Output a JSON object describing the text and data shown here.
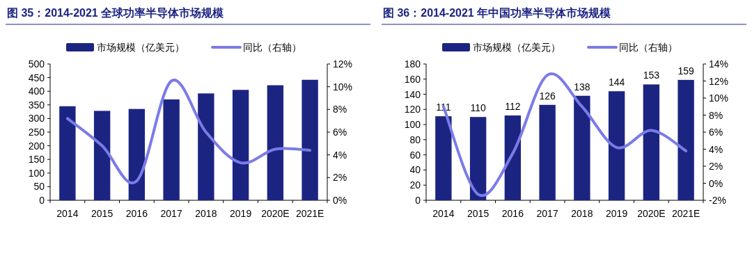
{
  "chart_data": [
    {
      "type": "bar",
      "title": "图 35：2014-2021 全球功率半导体市场规模",
      "categories": [
        "2014",
        "2015",
        "2016",
        "2017",
        "2018",
        "2019",
        "2020E",
        "2021E"
      ],
      "series": [
        {
          "name": "市场规模（亿美元）",
          "color": "#1c2482",
          "values": [
            345,
            328,
            335,
            370,
            392,
            405,
            422,
            442
          ]
        },
        {
          "name": "同比（右轴）",
          "type": "line",
          "axis": "y2",
          "color": "#7b7be8",
          "values": [
            7.2,
            4.8,
            1.7,
            10.5,
            6.0,
            3.3,
            4.5,
            4.4
          ]
        }
      ],
      "ylim": [
        0,
        500
      ],
      "yticks": [
        0,
        50,
        100,
        150,
        200,
        250,
        300,
        350,
        400,
        450,
        500
      ],
      "y2lim": [
        0,
        12
      ],
      "y2ticks": [
        {
          "value": 0,
          "label": "0%"
        },
        {
          "value": 2,
          "label": "2%"
        },
        {
          "value": 4,
          "label": "4%"
        },
        {
          "value": 6,
          "label": "6%"
        },
        {
          "value": 8,
          "label": "8%"
        },
        {
          "value": 10,
          "label": "10%"
        },
        {
          "value": 12,
          "label": "12%"
        }
      ],
      "legend": "top"
    },
    {
      "type": "bar",
      "title": "图 36：2014-2021 年中国功率半导体市场规模",
      "categories": [
        "2014",
        "2015",
        "2016",
        "2017",
        "2018",
        "2019",
        "2020E",
        "2021E"
      ],
      "series": [
        {
          "name": "市场规模（亿美元）",
          "color": "#1c2482",
          "values": [
            111,
            110,
            112,
            126,
            138,
            144,
            153,
            159
          ],
          "value_labels": [
            "111",
            "110",
            "112",
            "126",
            "138",
            "144",
            "153",
            "159"
          ]
        },
        {
          "name": "同比（右轴）",
          "type": "line",
          "axis": "y2",
          "color": "#7b7be8",
          "values": [
            9.0,
            -1.3,
            3.5,
            12.7,
            9.0,
            4.2,
            6.2,
            3.8
          ]
        }
      ],
      "ylim": [
        0,
        180
      ],
      "yticks": [
        0,
        20,
        40,
        60,
        80,
        100,
        120,
        140,
        160,
        180
      ],
      "y2lim": [
        -2,
        14
      ],
      "y2ticks": [
        {
          "value": -2,
          "label": "-2%"
        },
        {
          "value": 0,
          "label": "0%"
        },
        {
          "value": 2,
          "label": "2%"
        },
        {
          "value": 4,
          "label": "4%"
        },
        {
          "value": 6,
          "label": "6%"
        },
        {
          "value": 8,
          "label": "8%"
        },
        {
          "value": 10,
          "label": "10%"
        },
        {
          "value": 12,
          "label": "12%"
        },
        {
          "value": 14,
          "label": "14%"
        }
      ],
      "legend": "top"
    }
  ]
}
